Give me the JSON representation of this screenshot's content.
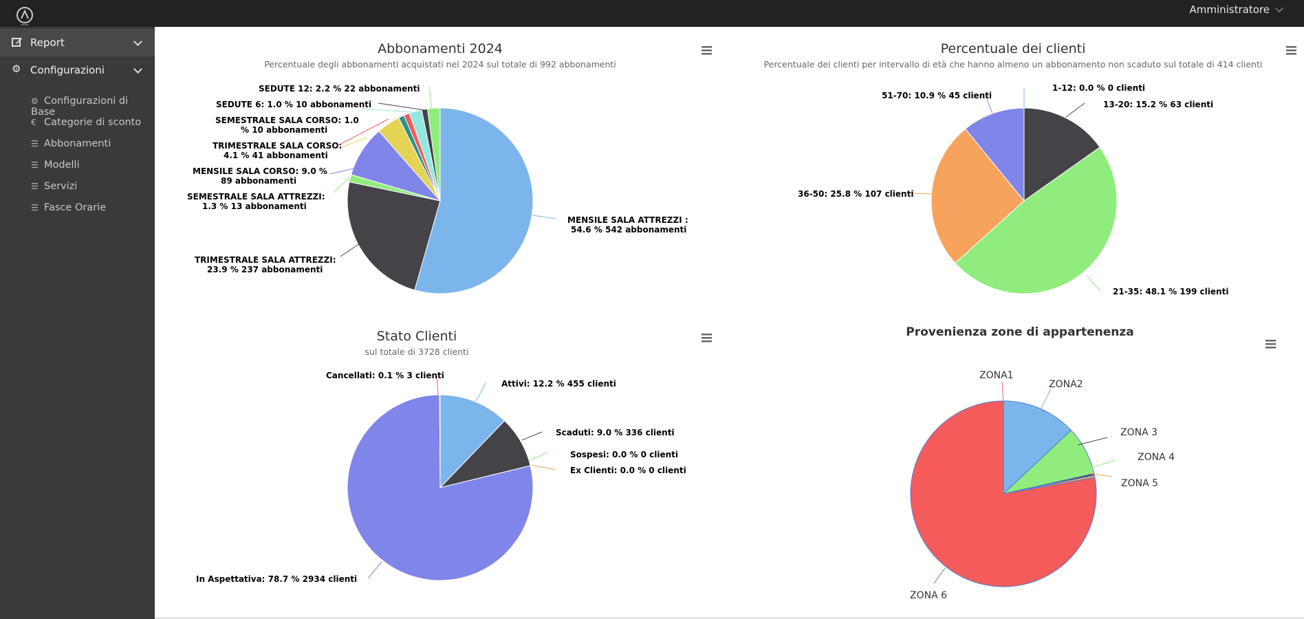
{
  "header": {
    "user_label": "Amministratore"
  },
  "sidebar": {
    "report_label": "Report",
    "config_label": "Configurazioni",
    "items": [
      {
        "label": "Configurazioni di Base",
        "icon": "gear-icon"
      },
      {
        "label": "Categorie di sconto",
        "icon": "euro-icon"
      },
      {
        "label": "Abbonamenti",
        "icon": "list-icon"
      },
      {
        "label": "Modelli",
        "icon": "list-icon"
      },
      {
        "label": "Servizi",
        "icon": "list-icon"
      },
      {
        "label": "Fasce Orarie",
        "icon": "list-icon"
      }
    ]
  },
  "chart_data": [
    {
      "type": "pie",
      "title": "Abbonamenti 2024",
      "subtitle": "Percentuale degli abbonamenti acquistati nel 2024 sul totale di 992 abbonamenti",
      "slices": [
        {
          "name": "MENSILE SALA ATTREZZI",
          "percent": 54.6,
          "count": 542,
          "color": "#7cb5ec"
        },
        {
          "name": "TRIMESTRALE SALA ATTREZZI",
          "percent": 23.9,
          "count": 237,
          "color": "#434348"
        },
        {
          "name": "SEMESTRALE SALA ATTREZZI",
          "percent": 1.3,
          "count": 13,
          "color": "#90ed7d"
        },
        {
          "name": "MENSILE SALA CORSO",
          "percent": 9.0,
          "count": 89,
          "color": "#8085e9"
        },
        {
          "name": "TRIMESTRALE SALA CORSO",
          "percent": 4.1,
          "count": 41,
          "color": "#e4d354"
        },
        {
          "name": "SEMESTRALE SALA CORSO",
          "percent": 1.0,
          "count": 10,
          "color": "#2b908f"
        },
        {
          "name": "SEDUTE 6",
          "percent": 1.0,
          "count": 10,
          "color": "#f45b5b"
        },
        {
          "name": "SEDUTE 12",
          "percent": 2.2,
          "count": 22,
          "color": "#91e8e1"
        },
        {
          "name": "",
          "percent": 1.0,
          "count": 10,
          "color": "#434348"
        },
        {
          "name": "",
          "percent": 2.2,
          "count": 22,
          "color": "#90ed7d"
        }
      ],
      "labels": [
        [
          "MENSILE SALA ATTREZZI :",
          "54.6 % 542 abbonamenti"
        ],
        [
          "TRIMESTRALE SALA ATTREZZI:",
          "23.9 % 237 abbonamenti"
        ],
        [
          "SEMESTRALE SALA ATTREZZI:",
          "1.3 % 13 abbonamenti"
        ],
        [
          "MENSILE SALA CORSO: 9.0 %",
          "89 abbonamenti"
        ],
        [
          "TRIMESTRALE SALA CORSO:",
          "4.1 % 41 abbonamenti"
        ],
        [
          "SEMESTRALE SALA CORSO: 1.0",
          "% 10 abbonamenti"
        ],
        [
          "SEDUTE 6: 1.0 % 10 abbonamenti"
        ],
        [
          "SEDUTE 12: 2.2 % 22 abbonamenti"
        ]
      ]
    },
    {
      "type": "pie",
      "title": "Percentuale dei clienti",
      "subtitle": "Percentuale dei clienti per intervallo di età che hanno almeno un abbonamento non scaduto sul totale di 414 clienti",
      "slices": [
        {
          "name": "1-12",
          "percent": 0.0,
          "count": 0,
          "color": "#7cb5ec"
        },
        {
          "name": "13-20",
          "percent": 15.2,
          "count": 63,
          "color": "#434348"
        },
        {
          "name": "21-35",
          "percent": 48.1,
          "count": 199,
          "color": "#90ed7d"
        },
        {
          "name": "36-50",
          "percent": 25.8,
          "count": 107,
          "color": "#f7a35c"
        },
        {
          "name": "51-70",
          "percent": 10.9,
          "count": 45,
          "color": "#8085e9"
        }
      ],
      "labels": [
        "1-12: 0.0 % 0 clienti",
        "13-20: 15.2 % 63 clienti",
        "21-35: 48.1 % 199 clienti",
        "36-50: 25.8 % 107 clienti",
        "51-70: 10.9 % 45 clienti"
      ]
    },
    {
      "type": "pie",
      "title": "Stato Clienti",
      "subtitle": "sul totale di 3728 clienti",
      "slices": [
        {
          "name": "Attivi",
          "percent": 12.2,
          "count": 455,
          "color": "#7cb5ec"
        },
        {
          "name": "Scaduti",
          "percent": 9.0,
          "count": 336,
          "color": "#434348"
        },
        {
          "name": "Sospesi",
          "percent": 0.0,
          "count": 0,
          "color": "#90ed7d"
        },
        {
          "name": "Ex Clienti",
          "percent": 0.0,
          "count": 0,
          "color": "#f7a35c"
        },
        {
          "name": "In Aspettativa",
          "percent": 78.7,
          "count": 2934,
          "color": "#8085e9"
        },
        {
          "name": "Cancellati",
          "percent": 0.1,
          "count": 3,
          "color": "#f15c80"
        }
      ],
      "labels": [
        "Attivi: 12.2 % 455 clienti",
        "Scaduti: 9.0 % 336 clienti",
        "Sospesi: 0.0 % 0 clienti",
        "Ex Clienti: 0.0 % 0 clienti",
        "In Aspettativa: 78.7 % 2934 clienti",
        "Cancellati: 0.1 % 3 clienti"
      ]
    },
    {
      "type": "pie",
      "title": "Provenienza zone di appartenenza",
      "subtitle": "",
      "slices": [
        {
          "name": "ZONA1",
          "value": 0.0,
          "color": "#7cb5ec"
        },
        {
          "name": "ZONA2",
          "value": 13.0,
          "color": "#7cb5ec"
        },
        {
          "name": "ZONA 3",
          "value": 8.5,
          "color": "#90ed7d"
        },
        {
          "name": "ZONA 4",
          "value": 0.3,
          "color": "#434348"
        },
        {
          "name": "ZONA 5",
          "value": 0.4,
          "color": "#f7a35c"
        },
        {
          "name": "ZONA 6",
          "value": 77.8,
          "color": "#f45b5b"
        }
      ],
      "labels": [
        "ZONA1",
        "ZONA2",
        "ZONA 3",
        "ZONA 4",
        "ZONA 5",
        "ZONA 6"
      ]
    }
  ]
}
